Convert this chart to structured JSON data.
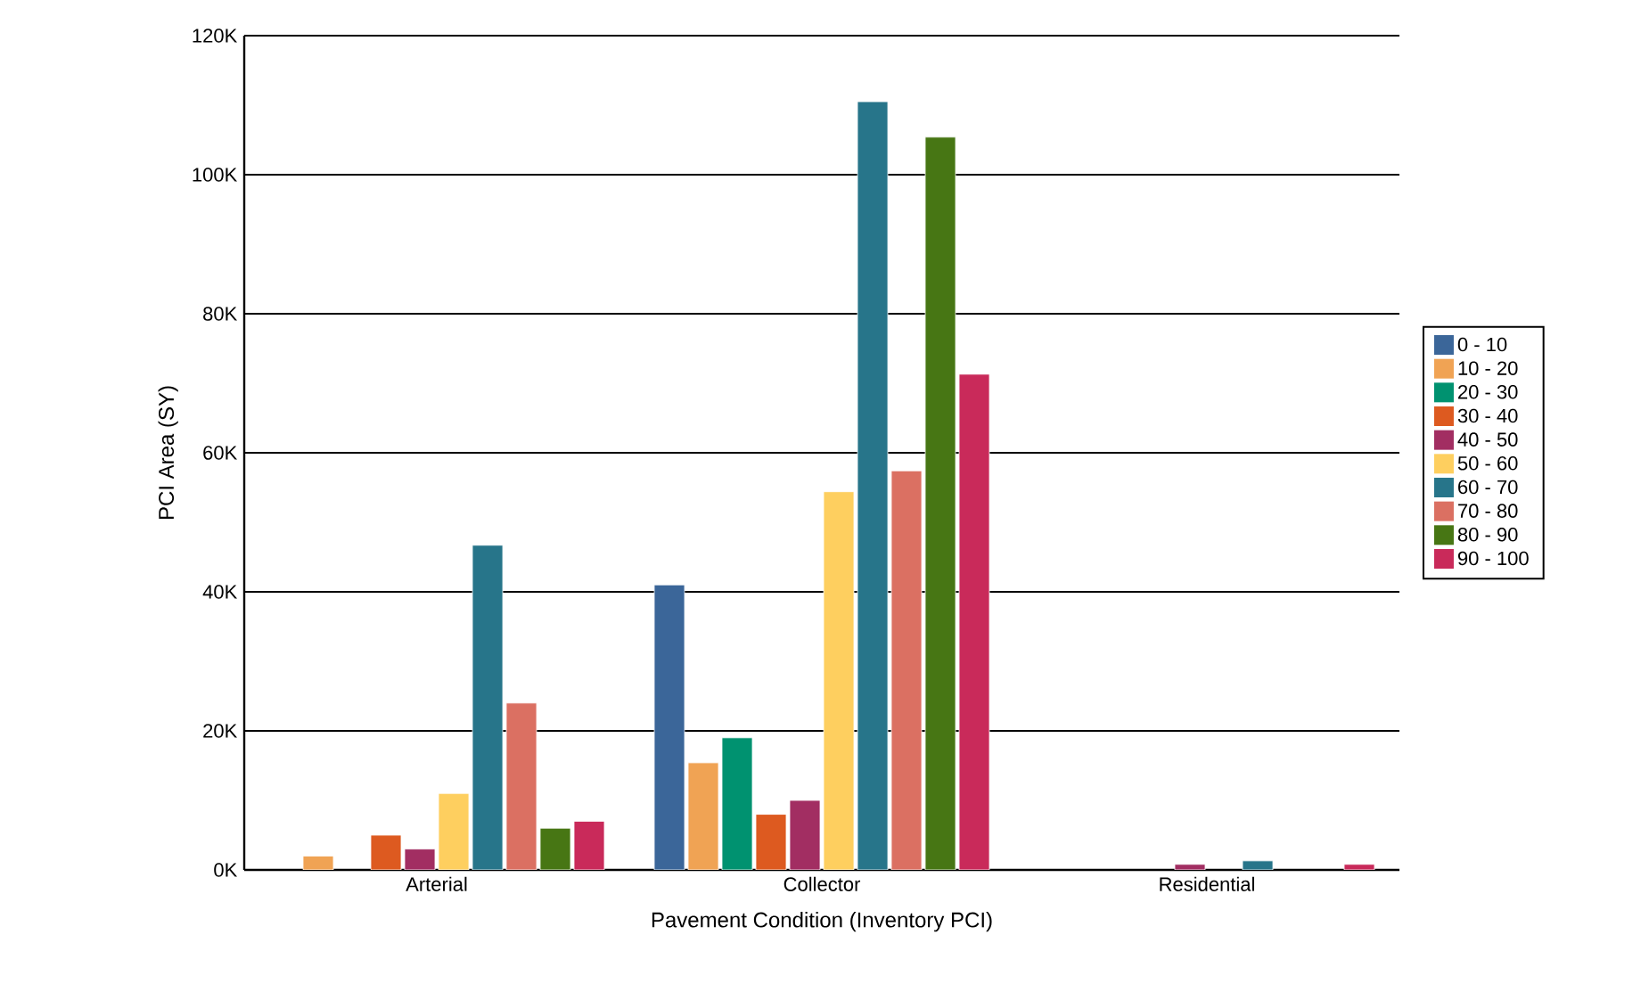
{
  "chart_data": {
    "type": "bar",
    "xlabel": "Pavement Condition (Inventory PCI)",
    "ylabel": "PCI Area (SY)",
    "categories": [
      "Arterial",
      "Collector",
      "Residential"
    ],
    "series": [
      {
        "name": "0 - 10",
        "color": "#3b6699",
        "values": [
          null,
          41,
          null
        ]
      },
      {
        "name": "10 - 20",
        "color": "#f0a354",
        "values": [
          2,
          15.4,
          null
        ]
      },
      {
        "name": "20 - 30",
        "color": "#009270",
        "values": [
          null,
          19,
          null
        ]
      },
      {
        "name": "30 - 40",
        "color": "#dd5a20",
        "values": [
          5,
          8,
          null
        ]
      },
      {
        "name": "40 - 50",
        "color": "#a22e62",
        "values": [
          3,
          10,
          0.8
        ]
      },
      {
        "name": "50 - 60",
        "color": "#fecf5f",
        "values": [
          11,
          54.4,
          null
        ]
      },
      {
        "name": "60 - 70",
        "color": "#27758a",
        "values": [
          46.7,
          110.5,
          1.3
        ]
      },
      {
        "name": "70 - 80",
        "color": "#db7062",
        "values": [
          24,
          57.4,
          null
        ]
      },
      {
        "name": "80 - 90",
        "color": "#477614",
        "values": [
          6,
          105.4,
          null
        ]
      },
      {
        "name": "90 - 100",
        "color": "#c92a5a",
        "values": [
          7,
          71.3,
          0.8
        ]
      }
    ],
    "ylim": [
      0,
      120
    ],
    "yticks": [
      {
        "value": 0,
        "label": "0K"
      },
      {
        "value": 20,
        "label": "20K"
      },
      {
        "value": 40,
        "label": "40K"
      },
      {
        "value": 60,
        "label": "60K"
      },
      {
        "value": 80,
        "label": "80K"
      },
      {
        "value": 100,
        "label": "100K"
      },
      {
        "value": 120,
        "label": "120K"
      }
    ],
    "grid": "y",
    "legend": "right"
  }
}
